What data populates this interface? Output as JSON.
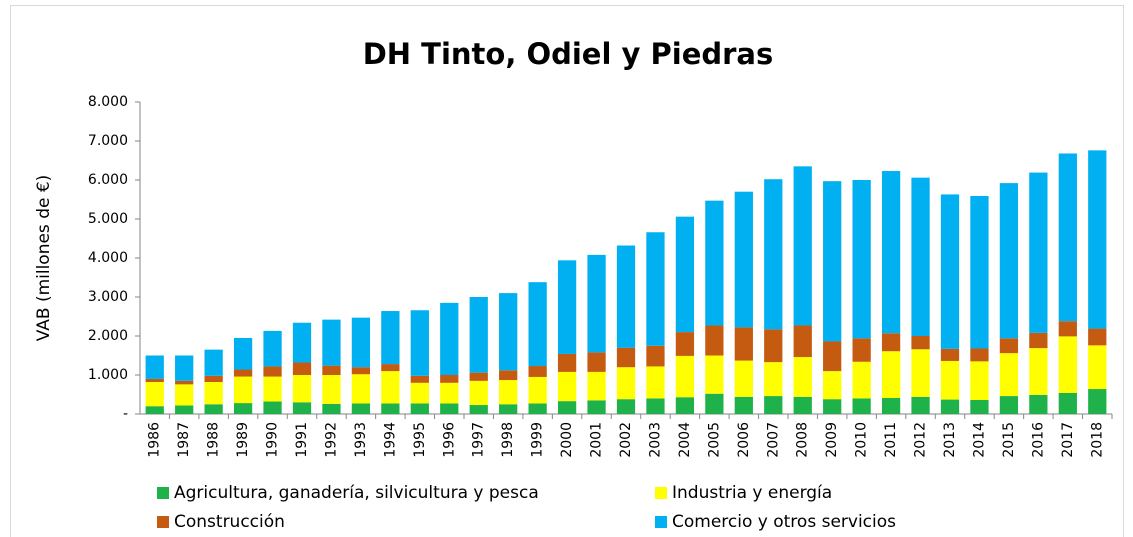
{
  "chart_data": {
    "type": "bar",
    "stacked": true,
    "title": "DH Tinto, Odiel y Piedras",
    "y_label": "VAB (millones de €)",
    "categories": [
      "1986",
      "1987",
      "1988",
      "1989",
      "1990",
      "1991",
      "1992",
      "1993",
      "1994",
      "1995",
      "1996",
      "1997",
      "1998",
      "1999",
      "2000",
      "2001",
      "2002",
      "2003",
      "2004",
      "2005",
      "2006",
      "2007",
      "2008",
      "2009",
      "2010",
      "2011",
      "2012",
      "2013",
      "2014",
      "2015",
      "2016",
      "2017",
      "2018"
    ],
    "series": [
      {
        "name": "Agricultura, ganadería, silvicultura y pesca",
        "color": "#1fb24a",
        "values": [
          200,
          220,
          250,
          280,
          320,
          300,
          260,
          270,
          270,
          270,
          270,
          230,
          250,
          270,
          330,
          350,
          380,
          400,
          430,
          520,
          440,
          460,
          440,
          380,
          400,
          410,
          440,
          370,
          360,
          460,
          490,
          540,
          640
        ]
      },
      {
        "name": "Industria y energía",
        "color": "#ffff00",
        "values": [
          620,
          540,
          570,
          680,
          640,
          700,
          740,
          750,
          830,
          530,
          530,
          620,
          620,
          680,
          750,
          730,
          820,
          820,
          1060,
          980,
          930,
          870,
          1020,
          720,
          940,
          1200,
          1220,
          990,
          990,
          1100,
          1200,
          1450,
          1120
        ]
      },
      {
        "name": "Construcción",
        "color": "#c55a11",
        "values": [
          80,
          90,
          160,
          180,
          260,
          320,
          240,
          180,
          180,
          180,
          200,
          210,
          250,
          280,
          460,
          500,
          500,
          530,
          610,
          770,
          850,
          840,
          810,
          760,
          600,
          460,
          340,
          310,
          330,
          380,
          390,
          390,
          430
        ]
      },
      {
        "name": "Comercio y otros servicios",
        "color": "#00b0f0",
        "values": [
          600,
          650,
          670,
          810,
          910,
          1020,
          1180,
          1270,
          1360,
          1680,
          1850,
          1940,
          1980,
          2150,
          2400,
          2500,
          2620,
          2910,
          2960,
          3200,
          3480,
          3850,
          4080,
          4110,
          4060,
          4160,
          4060,
          3960,
          3910,
          3980,
          4110,
          4300,
          4570
        ]
      }
    ],
    "ylim": [
      0,
      8000
    ],
    "yticks": [
      {
        "value": 0,
        "label": "-"
      },
      {
        "value": 1000,
        "label": "1.000"
      },
      {
        "value": 2000,
        "label": "2.000"
      },
      {
        "value": 3000,
        "label": "3.000"
      },
      {
        "value": 4000,
        "label": "4.000"
      },
      {
        "value": 5000,
        "label": "5.000"
      },
      {
        "value": 6000,
        "label": "6.000"
      },
      {
        "value": 7000,
        "label": "7.000"
      },
      {
        "value": 8000,
        "label": "8.000"
      }
    ],
    "grid": false
  }
}
